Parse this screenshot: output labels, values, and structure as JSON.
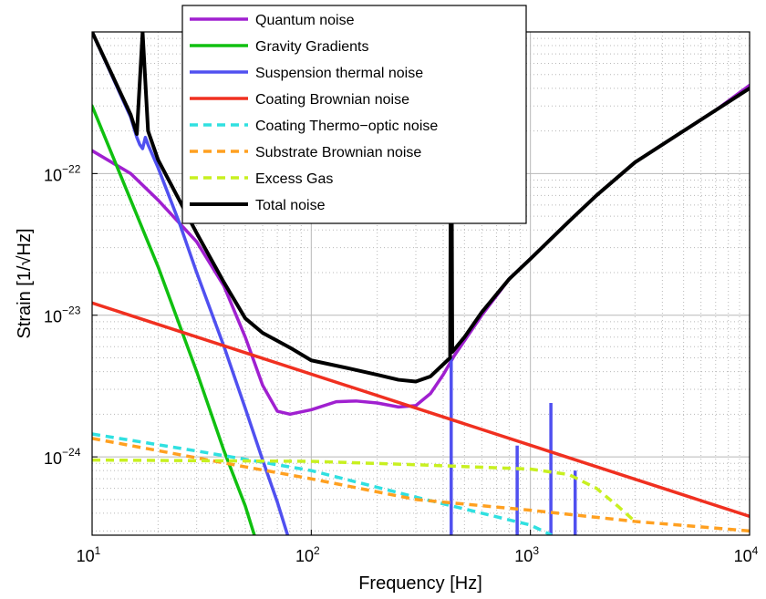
{
  "chart_data": {
    "type": "line",
    "title": "",
    "xlabel": "Frequency [Hz]",
    "ylabel": "Strain [1/√Hz]",
    "xscale": "log",
    "yscale": "log",
    "xlim": [
      10,
      10000
    ],
    "ylim": [
      2.8e-25,
      1e-21
    ],
    "grid": "on (major solid, minor dotted)",
    "legend_position": "top-left, inside axes",
    "x_ticks": [
      {
        "base": "10",
        "exp": "1",
        "value": 10
      },
      {
        "base": "10",
        "exp": "2",
        "value": 100
      },
      {
        "base": "10",
        "exp": "3",
        "value": 1000
      },
      {
        "base": "10",
        "exp": "4",
        "value": 10000
      }
    ],
    "y_ticks": [
      {
        "base": "10",
        "exp": "−24",
        "value": 1e-24
      },
      {
        "base": "10",
        "exp": "−23",
        "value": 1e-23
      },
      {
        "base": "10",
        "exp": "−22",
        "value": 1e-22
      }
    ],
    "series": [
      {
        "name": "Quantum noise",
        "color": "#a020d0",
        "dash": "solid",
        "width": 3.5,
        "points": [
          [
            10,
            1.45e-22
          ],
          [
            15,
            1e-22
          ],
          [
            20,
            6.5e-23
          ],
          [
            30,
            3.3e-23
          ],
          [
            40,
            1.6e-23
          ],
          [
            50,
            7e-24
          ],
          [
            60,
            3.2e-24
          ],
          [
            70,
            2.1e-24
          ],
          [
            80,
            2e-24
          ],
          [
            100,
            2.15e-24
          ],
          [
            130,
            2.45e-24
          ],
          [
            160,
            2.48e-24
          ],
          [
            200,
            2.4e-24
          ],
          [
            250,
            2.25e-24
          ],
          [
            300,
            2.3e-24
          ],
          [
            350,
            2.8e-24
          ],
          [
            400,
            3.8e-24
          ],
          [
            450,
            5.2e-24
          ],
          [
            600,
            1e-23
          ],
          [
            800,
            1.8e-23
          ],
          [
            1000,
            2.5e-23
          ],
          [
            1500,
            4.6e-23
          ],
          [
            2000,
            7e-23
          ],
          [
            3000,
            1.2e-22
          ],
          [
            5000,
            2e-22
          ],
          [
            7000,
            2.8e-22
          ],
          [
            10000,
            4.2e-22
          ]
        ]
      },
      {
        "name": "Gravity Gradients",
        "color": "#10c010",
        "dash": "solid",
        "width": 3.5,
        "points": [
          [
            10,
            3e-22
          ],
          [
            20,
            2.2e-23
          ],
          [
            30,
            4e-24
          ],
          [
            40,
            1.1e-24
          ],
          [
            50,
            4.5e-25
          ],
          [
            55,
            2.8e-25
          ]
        ]
      },
      {
        "name": "Suspension thermal noise",
        "color": "#5050f0",
        "dash": "solid",
        "width": 3.5,
        "points": [
          [
            10,
            1e-21
          ],
          [
            15,
            2.5e-22
          ],
          [
            16,
            1.8e-22
          ],
          [
            16.5,
            1.6e-22
          ],
          [
            17,
            1.5e-22
          ],
          [
            17.5,
            1.8e-22
          ],
          [
            18,
            1.6e-22
          ],
          [
            20,
            1.1e-22
          ],
          [
            25,
            4.5e-23
          ],
          [
            30,
            2e-23
          ],
          [
            40,
            6e-24
          ],
          [
            50,
            2.2e-24
          ],
          [
            60,
            9.5e-25
          ],
          [
            70,
            4.8e-25
          ],
          [
            78,
            2.8e-25
          ]
        ],
        "spikes": [
          [
            435,
            5e-24
          ],
          [
            870,
            1.2e-24
          ],
          [
            1240,
            2.4e-24
          ],
          [
            1600,
            8e-25
          ]
        ]
      },
      {
        "name": "Coating Brownian noise",
        "color": "#f03020",
        "dash": "solid",
        "width": 3.5,
        "points": [
          [
            10,
            1.22e-23
          ],
          [
            10000,
            3.8e-25
          ]
        ]
      },
      {
        "name": "Coating Thermo−optic noise",
        "color": "#30e0e0",
        "dash": "dashed",
        "width": 3.5,
        "points": [
          [
            10,
            1.45e-24
          ],
          [
            30,
            1.1e-24
          ],
          [
            100,
            8e-25
          ],
          [
            300,
            5.2e-25
          ],
          [
            1000,
            3.3e-25
          ],
          [
            1250,
            2.8e-25
          ]
        ]
      },
      {
        "name": "Substrate Brownian noise",
        "color": "#ffa020",
        "dash": "dashed",
        "width": 3.5,
        "points": [
          [
            10,
            1.35e-24
          ],
          [
            50,
            8.5e-25
          ],
          [
            100,
            7e-25
          ],
          [
            300,
            5e-25
          ],
          [
            1000,
            4.2e-25
          ],
          [
            3000,
            3.5e-25
          ],
          [
            10000,
            3e-25
          ]
        ]
      },
      {
        "name": "Excess Gas",
        "color": "#c8f020",
        "dash": "dashed",
        "width": 3.5,
        "points": [
          [
            10,
            9.5e-25
          ],
          [
            100,
            9.3e-25
          ],
          [
            300,
            8.8e-25
          ],
          [
            1000,
            8.2e-25
          ],
          [
            1500,
            7.5e-25
          ],
          [
            2000,
            6e-25
          ],
          [
            2500,
            4.5e-25
          ],
          [
            3000,
            3.5e-25
          ]
        ]
      },
      {
        "name": "Total noise",
        "color": "#000000",
        "dash": "solid",
        "width": 4,
        "points": [
          [
            10,
            1e-21
          ],
          [
            15,
            2.6e-22
          ],
          [
            16,
            1.9e-22
          ],
          [
            17,
            1e-21
          ],
          [
            18,
            2e-22
          ],
          [
            20,
            1.25e-22
          ],
          [
            30,
            3.8e-23
          ],
          [
            40,
            1.7e-23
          ],
          [
            50,
            9.5e-24
          ],
          [
            60,
            7.5e-24
          ],
          [
            80,
            5.9e-24
          ],
          [
            100,
            4.8e-24
          ],
          [
            150,
            4.2e-24
          ],
          [
            200,
            3.8e-24
          ],
          [
            250,
            3.5e-24
          ],
          [
            300,
            3.4e-24
          ],
          [
            350,
            3.7e-24
          ],
          [
            400,
            4.5e-24
          ],
          [
            430,
            5e-24
          ],
          [
            435,
            1e-21
          ],
          [
            440,
            5.5e-24
          ],
          [
            500,
            7e-24
          ],
          [
            600,
            1.05e-23
          ],
          [
            800,
            1.8e-23
          ],
          [
            1000,
            2.5e-23
          ],
          [
            1500,
            4.6e-23
          ],
          [
            2000,
            7e-23
          ],
          [
            3000,
            1.2e-22
          ],
          [
            5000,
            2e-22
          ],
          [
            7000,
            2.8e-22
          ],
          [
            10000,
            4e-22
          ]
        ]
      }
    ]
  }
}
